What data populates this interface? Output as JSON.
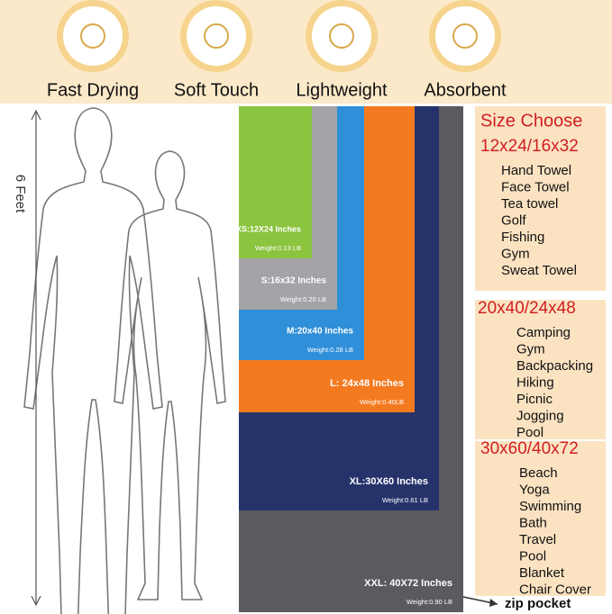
{
  "features": [
    {
      "label": "Fast Drying"
    },
    {
      "label": "Soft Touch"
    },
    {
      "label": "Lightweight"
    },
    {
      "label": "Absorbent"
    }
  ],
  "height_label": "6 Feet",
  "sizes": [
    {
      "name": "XXL: 40X72 Inches",
      "weight": "Weight:0.90 LB"
    },
    {
      "name": "XL:30X60 Inches",
      "weight": "Weight:0.61 LB"
    },
    {
      "name": "L: 24x48 Inches",
      "weight": "Weight:0.40LB"
    },
    {
      "name": "M:20x40 Inches",
      "weight": "Weight:0.28 LB"
    },
    {
      "name": "S:16x32 Inches",
      "weight": "Weight:0.20 LB"
    },
    {
      "name": "XS:12X24 Inches",
      "weight": "Weight:0.13 LB"
    }
  ],
  "zip_label": "zip pocket",
  "size_guide": {
    "title": "Size Choose",
    "groups": [
      {
        "heading": "12x24/16x32",
        "items": [
          "Hand Towel",
          "Face Towel",
          "Tea towel",
          "Golf",
          "Fishing",
          "Gym",
          "Sweat Towel"
        ]
      },
      {
        "heading": "20x40/24x48",
        "items": [
          "Camping",
          "Gym",
          "Backpacking",
          "Hiking",
          "Picnic",
          "Jogging",
          "Pool"
        ]
      },
      {
        "heading": "30x60/40x72",
        "items": [
          "Beach",
          "Yoga",
          "Swimming",
          "Bath",
          "Travel",
          "Pool",
          "Blanket",
          "Chair Cover"
        ]
      }
    ]
  }
}
